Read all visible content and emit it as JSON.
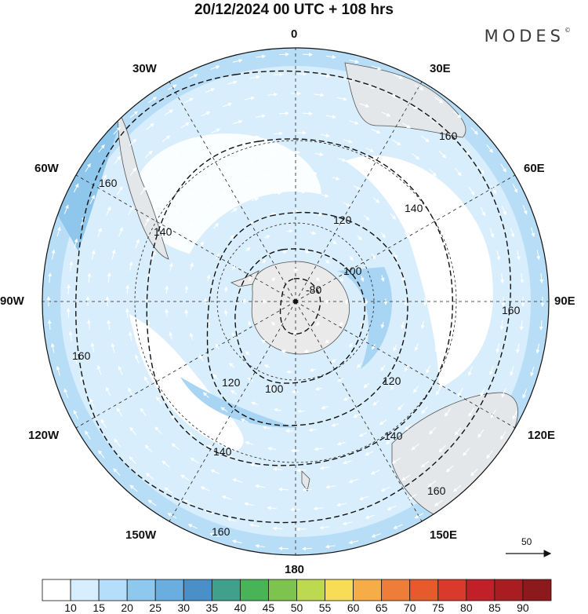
{
  "title": "20/12/2024  00 UTC  + 108 hrs",
  "brand": "MODES",
  "brand_mark": "©",
  "longitude_labels": {
    "n": "0",
    "e30": "30E",
    "e60": "60E",
    "e90": "90E",
    "e120": "120E",
    "e150": "150E",
    "s": "180",
    "w150": "150W",
    "w120": "120W",
    "w90": "90W",
    "w60": "60W",
    "w30": "30W"
  },
  "reference_vector": {
    "label": "50"
  },
  "contours": {
    "c80": "-80",
    "c100a": "100",
    "c100b": "100",
    "c120a": "120",
    "c120b": "120",
    "c120c": "120",
    "c140a": "140",
    "c140b": "140",
    "c140c": "140",
    "c140d": "140",
    "c160a": "160",
    "c160b": "160",
    "c160c": "160",
    "c160d": "160",
    "c160e": "160"
  },
  "colorbar": {
    "labels": [
      "10",
      "15",
      "20",
      "25",
      "30",
      "35",
      "40",
      "45",
      "50",
      "55",
      "60",
      "65",
      "70",
      "75",
      "80",
      "85",
      "90"
    ],
    "colors": [
      "#ffffff",
      "#d6eefe",
      "#b4defa",
      "#8ec8ee",
      "#6aaee0",
      "#4b8fc8",
      "#40a08c",
      "#49b457",
      "#7cc44f",
      "#bcd94f",
      "#f7dc55",
      "#f6ad48",
      "#ef7d3a",
      "#e75a2e",
      "#d93a2b",
      "#c12029",
      "#a81c22",
      "#8c1a1c"
    ]
  },
  "colors": {
    "land": "#eaeaea",
    "coast": "#555555",
    "grid": "#222222"
  }
}
